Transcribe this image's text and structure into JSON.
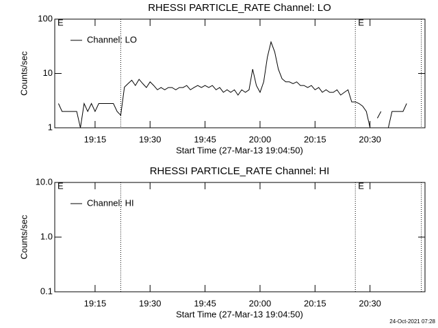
{
  "chart_data": [
    {
      "type": "line",
      "title": "RHESSI PARTICLE_RATE Channel: LO",
      "x_label": "Start Time (27-Mar-13 19:04:50)",
      "y_label": "Counts/sec",
      "log_y": true,
      "ylim": [
        1,
        100
      ],
      "yticks": [
        1,
        10,
        100
      ],
      "xlim": [
        "19:04",
        "20:45"
      ],
      "xticks": [
        "19:15",
        "19:30",
        "19:45",
        "20:00",
        "20:15",
        "20:30"
      ],
      "markers": [
        "19:22",
        "20:26",
        "20:44"
      ],
      "event_labels": [
        {
          "text": "E",
          "x": "19:04"
        },
        {
          "text": "E",
          "x": "20:26"
        }
      ],
      "x": [
        "19:05",
        "19:06",
        "19:07",
        "19:08",
        "19:09",
        "19:10",
        "19:11",
        "19:12",
        "19:13",
        "19:14",
        "19:15",
        "19:16",
        "19:17",
        "19:18",
        "19:19",
        "19:20",
        "19:21",
        "19:22",
        "19:23",
        "19:24",
        "19:25",
        "19:26",
        "19:27",
        "19:28",
        "19:29",
        "19:30",
        "19:31",
        "19:32",
        "19:33",
        "19:34",
        "19:35",
        "19:36",
        "19:37",
        "19:38",
        "19:39",
        "19:40",
        "19:41",
        "19:42",
        "19:43",
        "19:44",
        "19:45",
        "19:46",
        "19:47",
        "19:48",
        "19:49",
        "19:50",
        "19:51",
        "19:52",
        "19:53",
        "19:54",
        "19:55",
        "19:56",
        "19:57",
        "19:58",
        "19:59",
        "20:00",
        "20:01",
        "20:02",
        "20:03",
        "20:04",
        "20:05",
        "20:06",
        "20:07",
        "20:08",
        "20:09",
        "20:10",
        "20:11",
        "20:12",
        "20:13",
        "20:14",
        "20:15",
        "20:16",
        "20:17",
        "20:18",
        "20:19",
        "20:20",
        "20:21",
        "20:22",
        "20:23",
        "20:24",
        "20:25",
        "20:26",
        "20:27",
        "20:28",
        "20:29",
        "20:30",
        "20:31",
        "20:32",
        "20:33",
        "20:34",
        "20:35",
        "20:36",
        "20:37",
        "20:38",
        "20:39",
        "20:40"
      ],
      "series": [
        {
          "name": "Channel: LO",
          "color": "#000000",
          "values": [
            2.8,
            2,
            2,
            2,
            2,
            2,
            1,
            2.8,
            2,
            2.8,
            2,
            2.8,
            2.8,
            2.8,
            2.8,
            2.8,
            2,
            1.7,
            5.6,
            6.5,
            7.5,
            6,
            7.8,
            6.5,
            5.5,
            7,
            6,
            5,
            5.5,
            5,
            5.5,
            5.5,
            5,
            5.5,
            5.5,
            6,
            5,
            5.5,
            6,
            5.5,
            6,
            5.5,
            6,
            5,
            5.5,
            4.5,
            5,
            4.5,
            5,
            4,
            5,
            4.5,
            5,
            12,
            6,
            4.5,
            7,
            20,
            38,
            25,
            12,
            8,
            7,
            7,
            6.5,
            7,
            6,
            6,
            5.5,
            6,
            5,
            5.5,
            4.5,
            5,
            4.5,
            4.5,
            5,
            4,
            4.5,
            5,
            3,
            3,
            2.8,
            2.5,
            2,
            1,
            null,
            1.5,
            2,
            null,
            1,
            2,
            2,
            2,
            2,
            2.8
          ]
        }
      ]
    },
    {
      "type": "line",
      "title": "RHESSI PARTICLE_RATE Channel: HI",
      "x_label": "Start Time (27-Mar-13 19:04:50)",
      "y_label": "Counts/sec",
      "log_y": true,
      "ylim": [
        0.1,
        10
      ],
      "yticks": [
        0.1,
        {
          "value": 1,
          "label": "1.0"
        },
        {
          "value": 10,
          "label": "10.0"
        }
      ],
      "xlim": [
        "19:04",
        "20:45"
      ],
      "xticks": [
        "19:15",
        "19:30",
        "19:45",
        "20:00",
        "20:15",
        "20:30"
      ],
      "markers": [
        "19:22",
        "20:26",
        "20:44"
      ],
      "event_labels": [
        {
          "text": "E",
          "x": "19:04"
        },
        {
          "text": "E",
          "x": "20:26"
        }
      ],
      "x": [],
      "series": [
        {
          "name": "Channel: HI",
          "color": "#000000",
          "values": []
        }
      ]
    }
  ],
  "footer": "24-Oct-2021 07:28"
}
